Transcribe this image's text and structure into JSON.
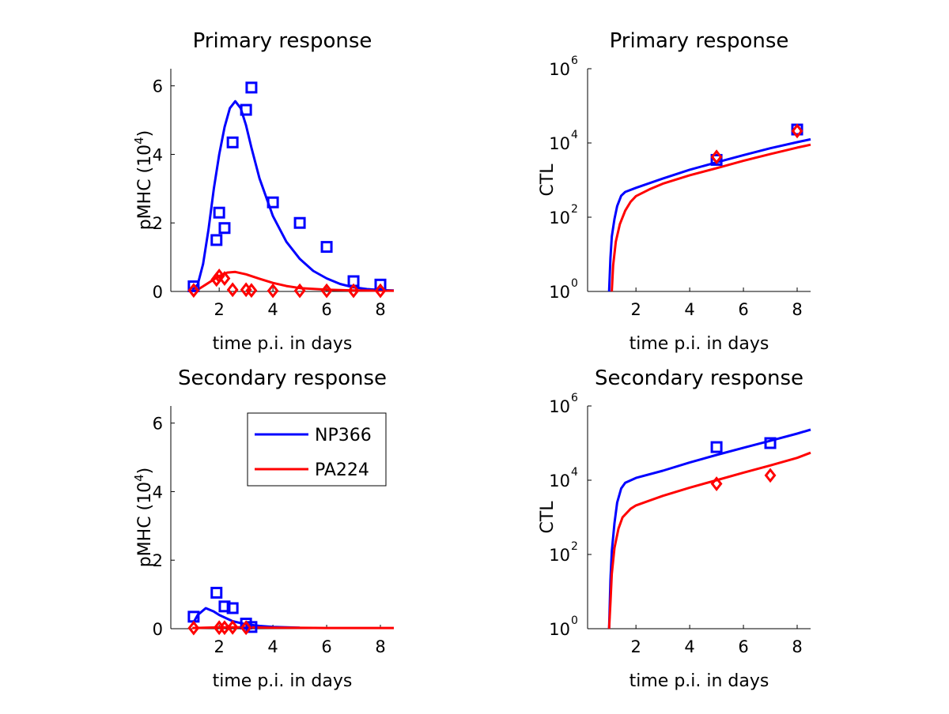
{
  "figure": {
    "legend": [
      {
        "name": "NP366",
        "color": "#0000ff"
      },
      {
        "name": "PA224",
        "color": "#ff0000"
      }
    ]
  },
  "chart_data": [
    {
      "id": "primary-pmhc",
      "type": "scatter",
      "title": "Primary response",
      "xlabel": "time p.i. in days",
      "ylabel_main": "pMHC (10",
      "ylabel_exp": "4",
      "ylabel_close": ")",
      "xlim": [
        0.2,
        8.5
      ],
      "ylim": [
        0,
        6.5
      ],
      "xticks": [
        2,
        4,
        6,
        8
      ],
      "yticks": [
        0,
        2,
        4,
        6
      ],
      "yscale": "linear",
      "series": [
        {
          "name": "NP366",
          "color": "#0000ff",
          "marker": "square",
          "points": [
            [
              1.05,
              0.15
            ],
            [
              1.9,
              1.5
            ],
            [
              2.0,
              2.3
            ],
            [
              2.2,
              1.85
            ],
            [
              2.5,
              4.35
            ],
            [
              3.0,
              5.3
            ],
            [
              3.2,
              5.95
            ],
            [
              4.0,
              2.6
            ],
            [
              5.0,
              2.0
            ],
            [
              6.0,
              1.3
            ],
            [
              7.0,
              0.3
            ],
            [
              8.0,
              0.2
            ]
          ],
          "curve": [
            [
              1.0,
              0.04
            ],
            [
              1.2,
              0.2
            ],
            [
              1.4,
              0.8
            ],
            [
              1.6,
              1.8
            ],
            [
              1.8,
              3.0
            ],
            [
              2.0,
              4.0
            ],
            [
              2.2,
              4.8
            ],
            [
              2.4,
              5.35
            ],
            [
              2.6,
              5.55
            ],
            [
              2.8,
              5.35
            ],
            [
              3.0,
              4.85
            ],
            [
              3.2,
              4.2
            ],
            [
              3.5,
              3.3
            ],
            [
              4.0,
              2.2
            ],
            [
              4.5,
              1.45
            ],
            [
              5.0,
              0.95
            ],
            [
              5.5,
              0.6
            ],
            [
              6.0,
              0.38
            ],
            [
              6.5,
              0.22
            ],
            [
              7.0,
              0.12
            ],
            [
              7.5,
              0.07
            ],
            [
              8.0,
              0.04
            ],
            [
              8.5,
              0.03
            ]
          ]
        },
        {
          "name": "PA224",
          "color": "#ff0000",
          "marker": "diamond",
          "points": [
            [
              1.05,
              0.03
            ],
            [
              1.9,
              0.35
            ],
            [
              2.0,
              0.45
            ],
            [
              2.2,
              0.38
            ],
            [
              2.5,
              0.05
            ],
            [
              3.0,
              0.05
            ],
            [
              3.2,
              0.03
            ],
            [
              4.0,
              0.02
            ],
            [
              5.0,
              0.02
            ],
            [
              6.0,
              0.02
            ],
            [
              7.0,
              0.02
            ],
            [
              8.0,
              0.02
            ]
          ],
          "curve": [
            [
              1.0,
              0.01
            ],
            [
              1.2,
              0.05
            ],
            [
              1.5,
              0.2
            ],
            [
              2.0,
              0.45
            ],
            [
              2.3,
              0.55
            ],
            [
              2.6,
              0.57
            ],
            [
              3.0,
              0.5
            ],
            [
              3.5,
              0.37
            ],
            [
              4.0,
              0.25
            ],
            [
              4.5,
              0.16
            ],
            [
              5.0,
              0.1
            ],
            [
              6.0,
              0.05
            ],
            [
              7.0,
              0.03
            ],
            [
              8.5,
              0.02
            ]
          ]
        }
      ]
    },
    {
      "id": "primary-ctl",
      "type": "scatter",
      "title": "Primary response",
      "xlabel": "time p.i. in days",
      "ylabel_main": "CTL",
      "ylabel_exp": "",
      "ylabel_close": "",
      "xlim": [
        0.2,
        8.5
      ],
      "ylim": [
        1,
        1000000
      ],
      "xticks": [
        2,
        4,
        6,
        8
      ],
      "yticks": [
        1,
        100,
        10000,
        1000000
      ],
      "ytick_labels": [
        {
          "base": "10",
          "exp": "0"
        },
        {
          "base": "10",
          "exp": "2"
        },
        {
          "base": "10",
          "exp": "4"
        },
        {
          "base": "10",
          "exp": "6"
        }
      ],
      "yscale": "log",
      "series": [
        {
          "name": "NP366",
          "color": "#0000ff",
          "marker": "square",
          "points": [
            [
              5.0,
              3500
            ],
            [
              8.0,
              23000
            ]
          ],
          "curve": [
            [
              1.0,
              1
            ],
            [
              1.05,
              8
            ],
            [
              1.1,
              30
            ],
            [
              1.2,
              90
            ],
            [
              1.3,
              200
            ],
            [
              1.45,
              380
            ],
            [
              1.6,
              480
            ],
            [
              2.0,
              620
            ],
            [
              3.0,
              1100
            ],
            [
              4.0,
              1900
            ],
            [
              5.0,
              3000
            ],
            [
              6.0,
              4700
            ],
            [
              7.0,
              7200
            ],
            [
              8.0,
              10500
            ],
            [
              8.5,
              12500
            ]
          ]
        },
        {
          "name": "PA224",
          "color": "#ff0000",
          "marker": "diamond",
          "points": [
            [
              5.0,
              4200
            ],
            [
              8.0,
              21000
            ]
          ],
          "curve": [
            [
              1.1,
              1
            ],
            [
              1.15,
              5
            ],
            [
              1.25,
              22
            ],
            [
              1.4,
              65
            ],
            [
              1.6,
              150
            ],
            [
              1.8,
              260
            ],
            [
              2.0,
              370
            ],
            [
              2.5,
              560
            ],
            [
              3.0,
              800
            ],
            [
              4.0,
              1350
            ],
            [
              5.0,
              2100
            ],
            [
              6.0,
              3300
            ],
            [
              7.0,
              5000
            ],
            [
              8.0,
              7500
            ],
            [
              8.5,
              9000
            ]
          ]
        }
      ]
    },
    {
      "id": "secondary-pmhc",
      "type": "scatter",
      "title": "Secondary response",
      "xlabel": "time p.i. in days",
      "ylabel_main": "pMHC (10",
      "ylabel_exp": "4",
      "ylabel_close": ")",
      "xlim": [
        0.2,
        8.5
      ],
      "ylim": [
        0,
        6.5
      ],
      "xticks": [
        2,
        4,
        6,
        8
      ],
      "yticks": [
        0,
        2,
        4,
        6
      ],
      "yscale": "linear",
      "series": [
        {
          "name": "NP366",
          "color": "#0000ff",
          "marker": "square",
          "points": [
            [
              1.05,
              0.35
            ],
            [
              1.9,
              1.05
            ],
            [
              2.2,
              0.65
            ],
            [
              2.5,
              0.6
            ],
            [
              3.0,
              0.15
            ],
            [
              3.2,
              0.05
            ]
          ],
          "curve": [
            [
              1.0,
              0.12
            ],
            [
              1.2,
              0.4
            ],
            [
              1.5,
              0.6
            ],
            [
              1.8,
              0.5
            ],
            [
              2.0,
              0.4
            ],
            [
              2.5,
              0.22
            ],
            [
              3.0,
              0.13
            ],
            [
              3.5,
              0.08
            ],
            [
              4.0,
              0.05
            ],
            [
              5.0,
              0.03
            ]
          ]
        },
        {
          "name": "PA224",
          "color": "#ff0000",
          "marker": "diamond",
          "points": [
            [
              1.05,
              0.02
            ],
            [
              2.0,
              0.03
            ],
            [
              2.2,
              0.03
            ],
            [
              2.5,
              0.04
            ],
            [
              3.0,
              0.03
            ]
          ],
          "curve": [
            [
              1.0,
              0.02
            ],
            [
              2.0,
              0.04
            ],
            [
              3.0,
              0.04
            ],
            [
              4.0,
              0.03
            ],
            [
              6.0,
              0.02
            ],
            [
              8.5,
              0.02
            ]
          ]
        }
      ]
    },
    {
      "id": "secondary-ctl",
      "type": "scatter",
      "title": "Secondary response",
      "xlabel": "time p.i. in days",
      "ylabel_main": "CTL",
      "ylabel_exp": "",
      "ylabel_close": "",
      "xlim": [
        0.2,
        8.5
      ],
      "ylim": [
        1,
        1000000
      ],
      "xticks": [
        2,
        4,
        6,
        8
      ],
      "yticks": [
        1,
        100,
        10000,
        1000000
      ],
      "ytick_labels": [
        {
          "base": "10",
          "exp": "0"
        },
        {
          "base": "10",
          "exp": "2"
        },
        {
          "base": "10",
          "exp": "4"
        },
        {
          "base": "10",
          "exp": "6"
        }
      ],
      "yscale": "log",
      "series": [
        {
          "name": "NP366",
          "color": "#0000ff",
          "marker": "square",
          "points": [
            [
              5.0,
              78000
            ],
            [
              7.0,
              100000
            ]
          ],
          "curve": [
            [
              1.0,
              1
            ],
            [
              1.05,
              20
            ],
            [
              1.1,
              120
            ],
            [
              1.2,
              700
            ],
            [
              1.3,
              2500
            ],
            [
              1.45,
              6000
            ],
            [
              1.6,
              8500
            ],
            [
              2.0,
              11500
            ],
            [
              3.0,
              18000
            ],
            [
              4.0,
              30000
            ],
            [
              5.0,
              48000
            ],
            [
              6.0,
              75000
            ],
            [
              7.0,
              115000
            ],
            [
              8.0,
              180000
            ],
            [
              8.5,
              230000
            ]
          ]
        },
        {
          "name": "PA224",
          "color": "#ff0000",
          "marker": "diamond",
          "points": [
            [
              5.0,
              8000
            ],
            [
              7.0,
              13500
            ]
          ],
          "curve": [
            [
              1.0,
              1
            ],
            [
              1.05,
              5
            ],
            [
              1.1,
              30
            ],
            [
              1.2,
              150
            ],
            [
              1.35,
              500
            ],
            [
              1.5,
              1000
            ],
            [
              1.8,
              1700
            ],
            [
              2.0,
              2100
            ],
            [
              3.0,
              3800
            ],
            [
              4.0,
              6300
            ],
            [
              5.0,
              10000
            ],
            [
              6.0,
              16000
            ],
            [
              7.0,
              25000
            ],
            [
              8.0,
              40000
            ],
            [
              8.5,
              55000
            ]
          ]
        }
      ]
    }
  ]
}
